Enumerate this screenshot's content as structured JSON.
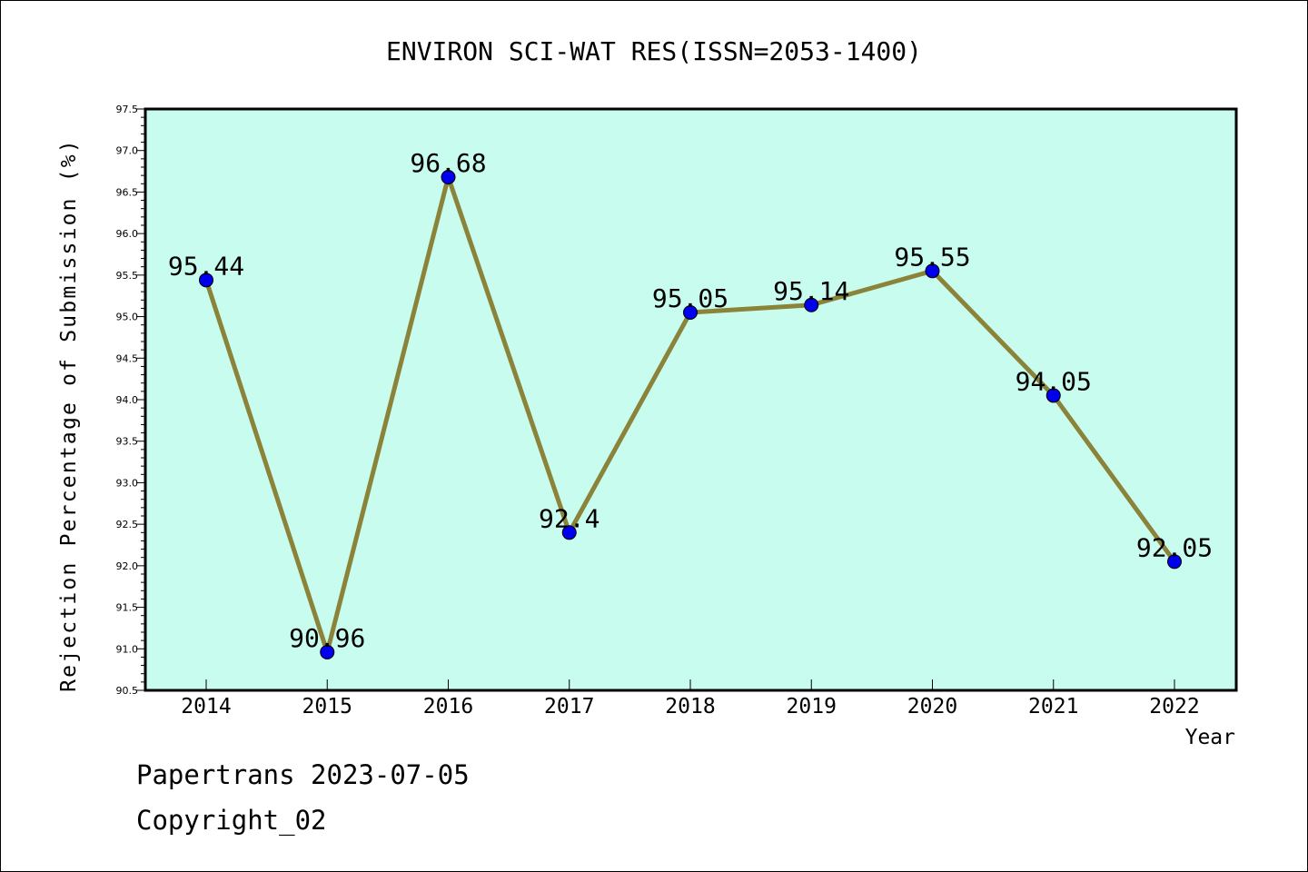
{
  "chart_data": {
    "type": "line",
    "title": "ENVIRON SCI-WAT RES(ISSN=2053-1400)",
    "xlabel": "Year",
    "ylabel": "Rejection Percentage of Submission (%)",
    "categories": [
      "2014",
      "2015",
      "2016",
      "2017",
      "2018",
      "2019",
      "2020",
      "2021",
      "2022"
    ],
    "series": [
      {
        "values": [
          95.44,
          90.96,
          96.68,
          92.4,
          95.05,
          95.14,
          95.55,
          94.05,
          92.05
        ],
        "labels": [
          "95.44",
          "90.96",
          "96.68",
          "92.4",
          "95.05",
          "95.14",
          "95.55",
          "94.05",
          "92.05"
        ]
      }
    ],
    "ylim": [
      90.5,
      97.5
    ],
    "yticks": [
      "90.5",
      "91.0",
      "91.5",
      "92.0",
      "92.5",
      "93.0",
      "93.5",
      "94.0",
      "94.5",
      "95.0",
      "95.5",
      "96.0",
      "96.5",
      "97.0",
      "97.5"
    ],
    "grid": false,
    "colors": {
      "plot_background": "#c8fcee",
      "line": "#8b8339",
      "marker": "#0000ee"
    }
  },
  "footer": {
    "line1": "Papertrans 2023-07-05",
    "line2": "Copyright_02"
  }
}
